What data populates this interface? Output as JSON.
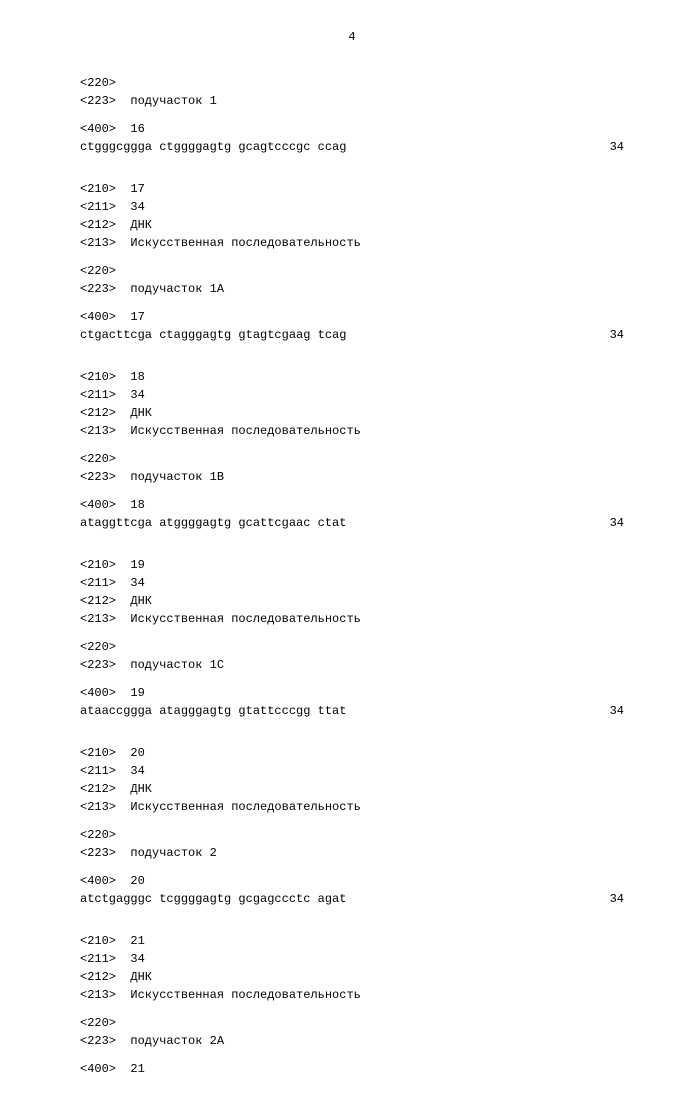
{
  "pageNumber": "4",
  "entries": [
    {
      "preHeader": [
        {
          "tag": "<220>",
          "value": ""
        },
        {
          "tag": "<223>",
          "value": "подучасток 1"
        }
      ],
      "seqHeader": {
        "tag": "<400>",
        "value": "16"
      },
      "sequence": "ctgggcggga ctggggagtg gcagtcccgc ccag",
      "length": "34"
    },
    {
      "header": [
        {
          "tag": "<210>",
          "value": "17"
        },
        {
          "tag": "<211>",
          "value": "34"
        },
        {
          "tag": "<212>",
          "value": "ДНК"
        },
        {
          "tag": "<213>",
          "value": "Искусственная последовательность"
        }
      ],
      "preHeader": [
        {
          "tag": "<220>",
          "value": ""
        },
        {
          "tag": "<223>",
          "value": "подучасток 1A"
        }
      ],
      "seqHeader": {
        "tag": "<400>",
        "value": "17"
      },
      "sequence": "ctgacttcga ctagggagtg gtagtcgaag tcag",
      "length": "34"
    },
    {
      "header": [
        {
          "tag": "<210>",
          "value": "18"
        },
        {
          "tag": "<211>",
          "value": "34"
        },
        {
          "tag": "<212>",
          "value": "ДНК"
        },
        {
          "tag": "<213>",
          "value": "Искусственная последовательность"
        }
      ],
      "preHeader": [
        {
          "tag": "<220>",
          "value": ""
        },
        {
          "tag": "<223>",
          "value": "подучасток 1B"
        }
      ],
      "seqHeader": {
        "tag": "<400>",
        "value": "18"
      },
      "sequence": "ataggttcga atggggagtg gcattcgaac ctat",
      "length": "34"
    },
    {
      "header": [
        {
          "tag": "<210>",
          "value": "19"
        },
        {
          "tag": "<211>",
          "value": "34"
        },
        {
          "tag": "<212>",
          "value": "ДНК"
        },
        {
          "tag": "<213>",
          "value": "Искусственная последовательность"
        }
      ],
      "preHeader": [
        {
          "tag": "<220>",
          "value": ""
        },
        {
          "tag": "<223>",
          "value": "подучасток 1C"
        }
      ],
      "seqHeader": {
        "tag": "<400>",
        "value": "19"
      },
      "sequence": "ataaccggga atagggagtg gtattcccgg ttat",
      "length": "34"
    },
    {
      "header": [
        {
          "tag": "<210>",
          "value": "20"
        },
        {
          "tag": "<211>",
          "value": "34"
        },
        {
          "tag": "<212>",
          "value": "ДНК"
        },
        {
          "tag": "<213>",
          "value": "Искусственная последовательность"
        }
      ],
      "preHeader": [
        {
          "tag": "<220>",
          "value": ""
        },
        {
          "tag": "<223>",
          "value": "подучасток 2"
        }
      ],
      "seqHeader": {
        "tag": "<400>",
        "value": "20"
      },
      "sequence": "atctgagggc tcggggagtg gcgagccctc agat",
      "length": "34"
    },
    {
      "header": [
        {
          "tag": "<210>",
          "value": "21"
        },
        {
          "tag": "<211>",
          "value": "34"
        },
        {
          "tag": "<212>",
          "value": "ДНК"
        },
        {
          "tag": "<213>",
          "value": "Искусственная последовательность"
        }
      ],
      "preHeader": [
        {
          "tag": "<220>",
          "value": ""
        },
        {
          "tag": "<223>",
          "value": "подучасток 2A"
        }
      ],
      "seqHeader": {
        "tag": "<400>",
        "value": "21"
      }
    }
  ]
}
